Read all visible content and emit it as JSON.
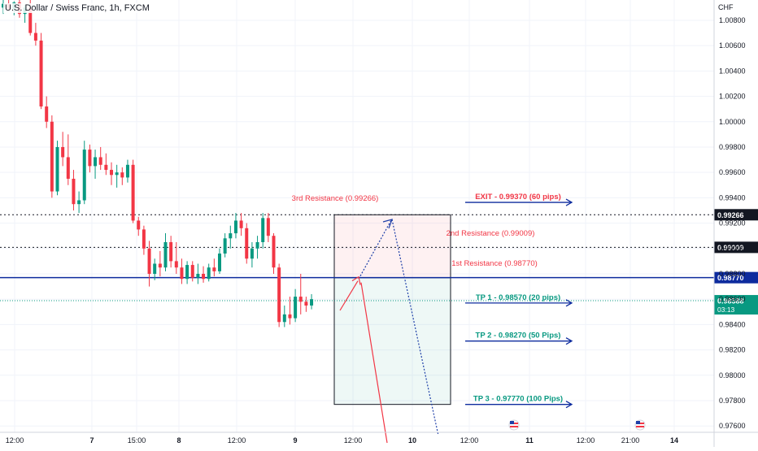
{
  "header": {
    "title": "U.S. Dollar / Swiss Franc, 1h, FXCM",
    "currency": "CHF"
  },
  "chart_data": {
    "type": "candlestick",
    "ylim": [
      0.9755,
      1.0096
    ],
    "y_ticks": [
      "1.00800",
      "1.00600",
      "1.00400",
      "1.00200",
      "1.00000",
      "0.99800",
      "0.99600",
      "0.99400",
      "0.99200",
      "0.99000",
      "0.98800",
      "0.98600",
      "0.98400",
      "0.98200",
      "0.98000",
      "0.97800",
      "0.97600"
    ],
    "x_ticks": [
      "12:00",
      "7",
      "15:00",
      "8",
      "12:00",
      "9",
      "12:00",
      "10",
      "12:00",
      "11",
      "12:00",
      "21:00",
      "14"
    ],
    "candles": [
      {
        "o": 1.009,
        "h": 1.0096,
        "l": 1.0085,
        "c": 1.0093
      },
      {
        "o": 1.0093,
        "h": 1.0096,
        "l": 1.0088,
        "c": 1.0089
      },
      {
        "o": 1.0089,
        "h": 1.0095,
        "l": 1.0084,
        "c": 1.0094
      },
      {
        "o": 1.0094,
        "h": 1.0096,
        "l": 1.0082,
        "c": 1.0085
      },
      {
        "o": 1.0085,
        "h": 1.0092,
        "l": 1.0078,
        "c": 1.009
      },
      {
        "o": 1.009,
        "h": 1.0096,
        "l": 1.0068,
        "c": 1.007
      },
      {
        "o": 1.007,
        "h": 1.0078,
        "l": 1.006,
        "c": 1.0064
      },
      {
        "o": 1.0064,
        "h": 1.007,
        "l": 1.001,
        "c": 1.0012
      },
      {
        "o": 1.0012,
        "h": 1.002,
        "l": 0.9995,
        "c": 1.0
      },
      {
        "o": 1.0,
        "h": 1.0005,
        "l": 0.994,
        "c": 0.9945
      },
      {
        "o": 0.9945,
        "h": 0.9985,
        "l": 0.9942,
        "c": 0.998
      },
      {
        "o": 0.998,
        "h": 0.9992,
        "l": 0.9965,
        "c": 0.9972
      },
      {
        "o": 0.9972,
        "h": 0.999,
        "l": 0.995,
        "c": 0.9955
      },
      {
        "o": 0.9955,
        "h": 0.9962,
        "l": 0.993,
        "c": 0.9935
      },
      {
        "o": 0.9935,
        "h": 0.9945,
        "l": 0.9928,
        "c": 0.9938
      },
      {
        "o": 0.9938,
        "h": 0.9985,
        "l": 0.9935,
        "c": 0.9978
      },
      {
        "o": 0.9978,
        "h": 0.9982,
        "l": 0.996,
        "c": 0.9965
      },
      {
        "o": 0.9965,
        "h": 0.9978,
        "l": 0.9955,
        "c": 0.9972
      },
      {
        "o": 0.9972,
        "h": 0.998,
        "l": 0.9962,
        "c": 0.9966
      },
      {
        "o": 0.9966,
        "h": 0.9975,
        "l": 0.9958,
        "c": 0.9962
      },
      {
        "o": 0.9962,
        "h": 0.9968,
        "l": 0.995,
        "c": 0.9958
      },
      {
        "o": 0.9958,
        "h": 0.9966,
        "l": 0.9948,
        "c": 0.996
      },
      {
        "o": 0.996,
        "h": 0.9964,
        "l": 0.995,
        "c": 0.9956
      },
      {
        "o": 0.9956,
        "h": 0.997,
        "l": 0.9952,
        "c": 0.9966
      },
      {
        "o": 0.9966,
        "h": 0.997,
        "l": 0.992,
        "c": 0.9922
      },
      {
        "o": 0.9922,
        "h": 0.9925,
        "l": 0.991,
        "c": 0.9915
      },
      {
        "o": 0.9915,
        "h": 0.9918,
        "l": 0.9895,
        "c": 0.99
      },
      {
        "o": 0.99,
        "h": 0.9906,
        "l": 0.987,
        "c": 0.988
      },
      {
        "o": 0.988,
        "h": 0.9892,
        "l": 0.9875,
        "c": 0.9888
      },
      {
        "o": 0.9888,
        "h": 0.9898,
        "l": 0.9878,
        "c": 0.9885
      },
      {
        "o": 0.9885,
        "h": 0.9912,
        "l": 0.9882,
        "c": 0.9905
      },
      {
        "o": 0.9905,
        "h": 0.991,
        "l": 0.9885,
        "c": 0.989
      },
      {
        "o": 0.989,
        "h": 0.9905,
        "l": 0.988,
        "c": 0.9885
      },
      {
        "o": 0.9885,
        "h": 0.9892,
        "l": 0.9872,
        "c": 0.9876
      },
      {
        "o": 0.9876,
        "h": 0.989,
        "l": 0.9872,
        "c": 0.9887
      },
      {
        "o": 0.9887,
        "h": 0.989,
        "l": 0.9874,
        "c": 0.9877
      },
      {
        "o": 0.9877,
        "h": 0.9888,
        "l": 0.9872,
        "c": 0.988
      },
      {
        "o": 0.988,
        "h": 0.9886,
        "l": 0.9873,
        "c": 0.9876
      },
      {
        "o": 0.9876,
        "h": 0.9888,
        "l": 0.9874,
        "c": 0.9885
      },
      {
        "o": 0.9885,
        "h": 0.9892,
        "l": 0.9878,
        "c": 0.9882
      },
      {
        "o": 0.9882,
        "h": 0.99,
        "l": 0.988,
        "c": 0.9896
      },
      {
        "o": 0.9896,
        "h": 0.9912,
        "l": 0.9893,
        "c": 0.9908
      },
      {
        "o": 0.9908,
        "h": 0.9918,
        "l": 0.99,
        "c": 0.9912
      },
      {
        "o": 0.9912,
        "h": 0.9928,
        "l": 0.9908,
        "c": 0.9922
      },
      {
        "o": 0.9922,
        "h": 0.9928,
        "l": 0.991,
        "c": 0.9916
      },
      {
        "o": 0.9916,
        "h": 0.992,
        "l": 0.9888,
        "c": 0.9892
      },
      {
        "o": 0.9892,
        "h": 0.9905,
        "l": 0.9885,
        "c": 0.99
      },
      {
        "o": 0.99,
        "h": 0.991,
        "l": 0.9892,
        "c": 0.9905
      },
      {
        "o": 0.9905,
        "h": 0.9928,
        "l": 0.99,
        "c": 0.9924
      },
      {
        "o": 0.9924,
        "h": 0.9928,
        "l": 0.9905,
        "c": 0.991
      },
      {
        "o": 0.991,
        "h": 0.9912,
        "l": 0.988,
        "c": 0.9885
      },
      {
        "o": 0.9885,
        "h": 0.9888,
        "l": 0.9838,
        "c": 0.9842
      },
      {
        "o": 0.9842,
        "h": 0.9855,
        "l": 0.9838,
        "c": 0.9848
      },
      {
        "o": 0.9848,
        "h": 0.9862,
        "l": 0.984,
        "c": 0.9845
      },
      {
        "o": 0.9845,
        "h": 0.9868,
        "l": 0.9842,
        "c": 0.9862
      },
      {
        "o": 0.9862,
        "h": 0.988,
        "l": 0.9848,
        "c": 0.9858
      },
      {
        "o": 0.9858,
        "h": 0.9862,
        "l": 0.985,
        "c": 0.9855
      },
      {
        "o": 0.9855,
        "h": 0.9864,
        "l": 0.9852,
        "c": 0.986
      }
    ],
    "horizontal_lines": [
      {
        "label": "3rd Resistance (0.99266)",
        "value": 0.99266,
        "tag": "0.99266",
        "style": "dotted",
        "color": "#131722",
        "label_color": "#f23645"
      },
      {
        "label": "2nd Resistance (0.99009)",
        "value": 0.99009,
        "tag": "0.99009",
        "style": "dotted",
        "color": "#131722",
        "label_color": "#f23645"
      },
      {
        "label": "1st Resistance (0.98770)",
        "value": 0.9877,
        "tag": "0.98770",
        "style": "solid",
        "color": "#0d2b9e",
        "label_color": "#f23645"
      }
    ],
    "current_price": {
      "value": 0.98588,
      "tag": "0.98588",
      "countdown": "03:13",
      "color": "#089981"
    },
    "targets": [
      {
        "label": "EXIT - 0.99370 (60 pips)",
        "value": 0.9937,
        "color": "#f23645"
      },
      {
        "label": "TP 1 - 0.98570 (20 pips)",
        "value": 0.9857,
        "color": "#089981"
      },
      {
        "label": "TP 2 - 0.98270 (50 Pips)",
        "value": 0.9827,
        "color": "#089981"
      },
      {
        "label": "TP 3 - 0.97770 (100 Pips)",
        "value": 0.9777,
        "color": "#089981"
      }
    ],
    "position_box": {
      "top": 0.99266,
      "entry": 0.9877,
      "bottom": 0.9777
    },
    "colors": {
      "up": "#089981",
      "down": "#f23645",
      "axis_text": "#131722",
      "grid": "#f0f3fa",
      "arrow_up": "#f23645",
      "arrow_down": "#1e3fa8",
      "target_arrow": "#0d2b9e"
    }
  }
}
